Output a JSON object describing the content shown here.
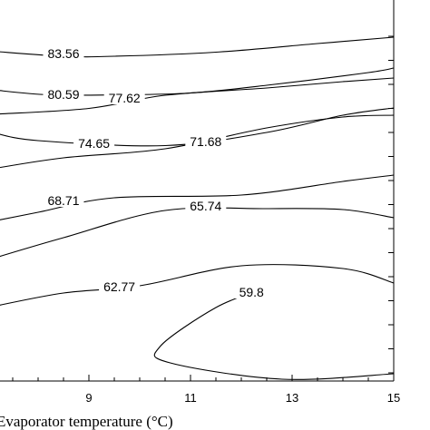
{
  "chart_data": {
    "type": "contour",
    "xlabel": "Evaporator temperature (°C)",
    "xlim": [
      7.1,
      15
    ],
    "xticks": [
      9,
      11,
      13,
      15
    ],
    "xtick_labels": [
      "9",
      "11",
      "13",
      "15"
    ],
    "levels": [
      {
        "value": "83.56",
        "points": [
          [
            7.1,
            56.5
          ],
          [
            8.5,
            62
          ],
          [
            9.5,
            62
          ],
          [
            11.5,
            57.5
          ],
          [
            13.5,
            48
          ],
          [
            15,
            41
          ]
        ],
        "label_at": [
          8.5,
          59
        ]
      },
      {
        "value": "80.59",
        "points": [
          [
            7.1,
            99
          ],
          [
            8.2,
            104.5
          ],
          [
            9.6,
            104.5
          ],
          [
            11,
            102.5
          ],
          [
            12.5,
            94
          ],
          [
            14.5,
            80
          ],
          [
            15,
            75
          ]
        ],
        "label_at": [
          8.5,
          104
        ]
      },
      {
        "value": "77.62",
        "points": [
          [
            7.1,
            126
          ],
          [
            9,
            119.5
          ],
          [
            10.5,
            105
          ],
          [
            12.5,
            97
          ],
          [
            14,
            90
          ],
          [
            15,
            86
          ]
        ],
        "label_at": [
          9.7,
          108
        ]
      },
      {
        "value": "74.65",
        "points": [
          [
            7.1,
            146
          ],
          [
            8,
            155
          ],
          [
            10.5,
            160.5
          ],
          [
            12.5,
            146
          ],
          [
            14,
            127
          ],
          [
            15,
            119
          ]
        ],
        "label_at": [
          9.1,
          158
        ]
      },
      {
        "value": "71.68",
        "points": [
          [
            7.1,
            186
          ],
          [
            8.5,
            174
          ],
          [
            10.5,
            164
          ],
          [
            12.5,
            141
          ],
          [
            14,
            129
          ],
          [
            15,
            127
          ]
        ],
        "label_at": [
          11.3,
          156
        ]
      },
      {
        "value": "68.71",
        "points": [
          [
            7.1,
            244
          ],
          [
            8,
            234
          ],
          [
            9.5,
            218
          ],
          [
            12,
            215
          ],
          [
            14,
            200
          ],
          [
            15,
            193
          ]
        ],
        "label_at": [
          8.5,
          221
        ]
      },
      {
        "value": "65.74",
        "points": [
          [
            7.1,
            285
          ],
          [
            8.5,
            262
          ],
          [
            10.5,
            232
          ],
          [
            12.5,
            230
          ],
          [
            14,
            231
          ],
          [
            15,
            240
          ]
        ],
        "label_at": [
          11.3,
          227
        ]
      },
      {
        "value": "62.77",
        "points": [
          [
            7.1,
            338
          ],
          [
            8.5,
            323
          ],
          [
            10,
            315
          ],
          [
            12,
            293
          ],
          [
            14,
            296
          ],
          [
            15,
            312
          ]
        ],
        "label_at": [
          9.6,
          316
        ]
      },
      {
        "value": "59.8",
        "points": [
          [
            12.4,
            319
          ],
          [
            11.5,
            339
          ],
          [
            10.4,
            382
          ],
          [
            10.6,
            400
          ],
          [
            12.8,
            418
          ],
          [
            15,
            412
          ]
        ],
        "label_at": [
          12.2,
          322
        ]
      }
    ]
  }
}
